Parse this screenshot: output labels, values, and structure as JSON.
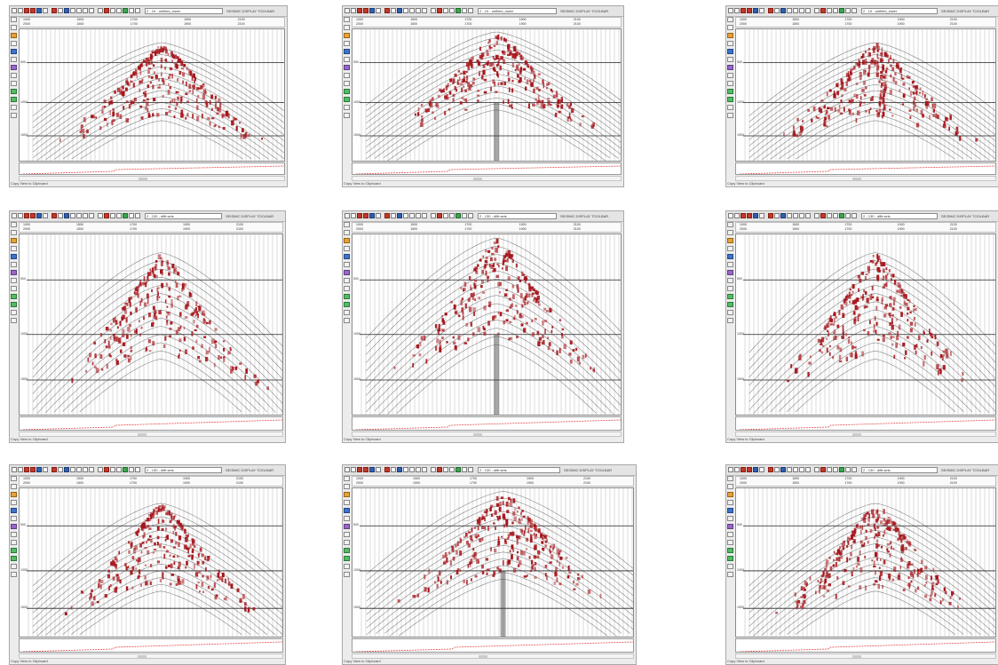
{
  "panels": [
    {
      "id": "p1",
      "status": "Copy View to Clipboard",
      "dropdown": "2 - 10 - unfilled_lower",
      "title": "SEISMIC DISPLAY TOOLBAR",
      "hdr_top": [
        "1000",
        "1500",
        "1700",
        "1900",
        "2100"
      ],
      "hdr_bot": [
        "2000",
        "1500",
        "1700",
        "1900",
        "2100"
      ],
      "yticks": [
        "500",
        "1000",
        "1500"
      ]
    },
    {
      "id": "p2",
      "status": "Copy View to Clipboard",
      "dropdown": "2 - 10 - unfilled_lower",
      "title": "SEISMIC DISPLAY TOOLBAR",
      "hdr_top": [
        "1000",
        "1500",
        "1700",
        "1900",
        "2100"
      ],
      "hdr_bot": [
        "2000",
        "1500",
        "1700",
        "1900",
        "2100"
      ],
      "yticks": [
        "500",
        "1000",
        "1500"
      ]
    },
    {
      "id": "p3",
      "status": "Copy View to Clipboard",
      "dropdown": "2 - 10 - unfilled_lower",
      "title": "SEISMIC DISPLAY TOOLBAR",
      "hdr_top": [
        "1000",
        "1500",
        "1700",
        "1900",
        "2100"
      ],
      "hdr_bot": [
        "2000",
        "1500",
        "1700",
        "1900",
        "2100"
      ],
      "yticks": [
        "500",
        "1000",
        "1500"
      ]
    },
    {
      "id": "p4",
      "status": "Copy View to Clipboard",
      "dropdown": "2 - 130 - diffr.seis",
      "title": "SEISMIC DISPLAY TOOLBAR",
      "hdr_top": [
        "1000",
        "1500",
        "1700",
        "1900",
        "2100"
      ],
      "hdr_bot": [
        "2000",
        "1500",
        "1700",
        "1900",
        "2100"
      ],
      "yticks": [
        "500",
        "1000",
        "1500"
      ]
    },
    {
      "id": "p5",
      "status": "Copy View to Clipboard",
      "dropdown": "2 - 130 - diffr.seis",
      "title": "SEISMIC DISPLAY TOOLBAR",
      "hdr_top": [
        "1000",
        "1500",
        "1700",
        "1900",
        "2100"
      ],
      "hdr_bot": [
        "2000",
        "1500",
        "1700",
        "1900",
        "2100"
      ],
      "yticks": [
        "500",
        "1000",
        "1500"
      ]
    },
    {
      "id": "p6",
      "status": "Copy View to Clipboard",
      "dropdown": "2 - 130 - diffr.seis",
      "title": "SEISMIC DISPLAY TOOLBAR",
      "hdr_top": [
        "1000",
        "1500",
        "1700",
        "1900",
        "2100"
      ],
      "hdr_bot": [
        "2000",
        "1500",
        "1700",
        "1900",
        "2100"
      ],
      "yticks": [
        "500",
        "1000",
        "1500"
      ]
    },
    {
      "id": "p7",
      "status": "Copy View to Clipboard",
      "dropdown": "2 - 130 - diffr.seis",
      "title": "SEISMIC DISPLAY TOOLBAR",
      "hdr_top": [
        "1000",
        "1500",
        "1700",
        "1900",
        "2100"
      ],
      "hdr_bot": [
        "2000",
        "1500",
        "1700",
        "1900",
        "2100"
      ],
      "yticks": [
        "500",
        "1000",
        "1500"
      ]
    },
    {
      "id": "p8",
      "status": "Copy View to Clipboard",
      "dropdown": "2 - 130 - diffr.seis",
      "title": "SEISMIC DISPLAY TOOLBAR",
      "hdr_top": [
        "1000",
        "1500",
        "1700",
        "1900",
        "2100"
      ],
      "hdr_bot": [
        "2000",
        "1500",
        "1700",
        "1900",
        "2100"
      ],
      "yticks": [
        "500",
        "1000",
        "1500"
      ]
    },
    {
      "id": "p9",
      "status": "Copy View to Clipboard",
      "dropdown": "2 - 130 - diffr.seis",
      "title": "SEISMIC DISPLAY TOOLBAR",
      "hdr_top": [
        "1000",
        "1500",
        "1700",
        "1900",
        "2100"
      ],
      "hdr_bot": [
        "2000",
        "1500",
        "1700",
        "1900",
        "2100"
      ],
      "yticks": [
        "500",
        "1000",
        "1500"
      ]
    }
  ],
  "colors": {
    "trace": "#2a2a2a",
    "amplitude": "#a5141a",
    "grid": "#9a9a9a",
    "baseline": "#e24b4b"
  }
}
